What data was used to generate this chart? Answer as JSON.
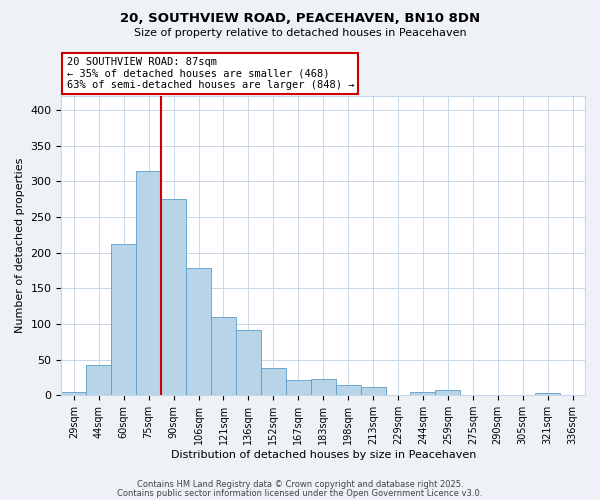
{
  "title": "20, SOUTHVIEW ROAD, PEACEHAVEN, BN10 8DN",
  "subtitle": "Size of property relative to detached houses in Peacehaven",
  "xlabel": "Distribution of detached houses by size in Peacehaven",
  "ylabel": "Number of detached properties",
  "bar_labels": [
    "29sqm",
    "44sqm",
    "60sqm",
    "75sqm",
    "90sqm",
    "106sqm",
    "121sqm",
    "136sqm",
    "152sqm",
    "167sqm",
    "183sqm",
    "198sqm",
    "213sqm",
    "229sqm",
    "244sqm",
    "259sqm",
    "275sqm",
    "290sqm",
    "305sqm",
    "321sqm",
    "336sqm"
  ],
  "bar_values": [
    5,
    43,
    212,
    315,
    275,
    178,
    110,
    92,
    38,
    21,
    23,
    14,
    12,
    0,
    5,
    7,
    1,
    0,
    0,
    3,
    0
  ],
  "bar_color": "#b8d4e8",
  "bar_edge_color": "#5a9dc8",
  "vline_color": "#cc0000",
  "vline_pos": 4.5,
  "ylim": [
    0,
    420
  ],
  "yticks": [
    0,
    50,
    100,
    150,
    200,
    250,
    300,
    350,
    400
  ],
  "annotation_title": "20 SOUTHVIEW ROAD: 87sqm",
  "annotation_line1": "← 35% of detached houses are smaller (468)",
  "annotation_line2": "63% of semi-detached houses are larger (848) →",
  "footnote1": "Contains HM Land Registry data © Crown copyright and database right 2025.",
  "footnote2": "Contains public sector information licensed under the Open Government Licence v3.0.",
  "bg_color": "#eef2f7",
  "plot_bg_color": "#ffffff",
  "grid_color": "#c8d8e8"
}
